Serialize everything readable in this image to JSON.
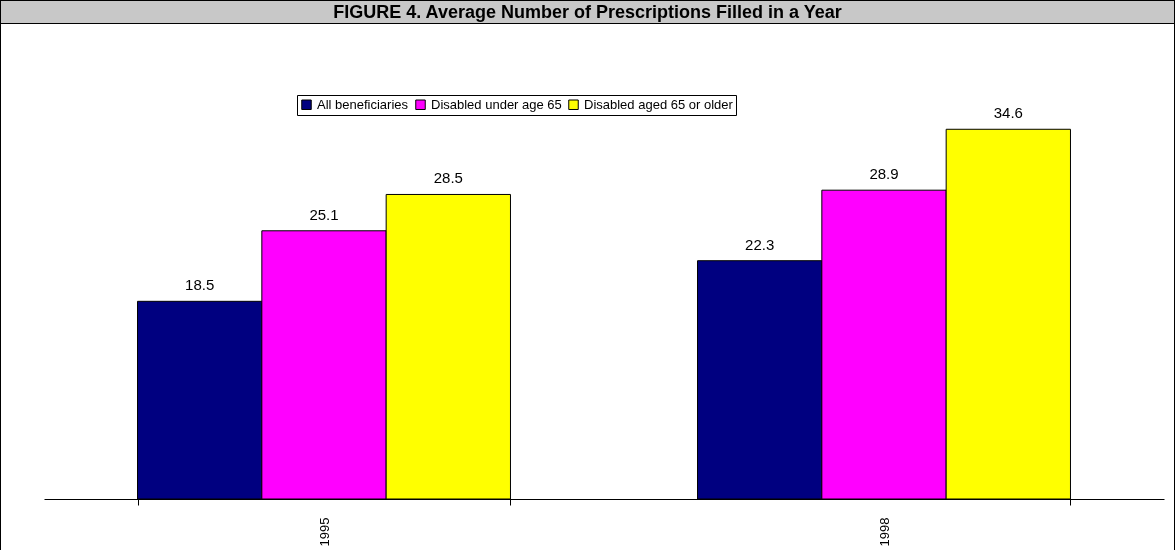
{
  "chart_data": {
    "type": "bar",
    "title": "FIGURE 4. Average Number of Prescriptions Filled in a Year",
    "categories": [
      "1995",
      "1998"
    ],
    "series": [
      {
        "name": "All beneficiaries",
        "color": "#000080",
        "values": [
          18.5,
          22.3
        ]
      },
      {
        "name": "Disabled under age 65",
        "color": "#ff00ff",
        "values": [
          25.1,
          28.9
        ]
      },
      {
        "name": "Disabled aged 65 or older",
        "color": "#ffff00",
        "values": [
          28.5,
          34.6
        ]
      }
    ],
    "data_labels": true,
    "legend": "top",
    "grid": false
  }
}
